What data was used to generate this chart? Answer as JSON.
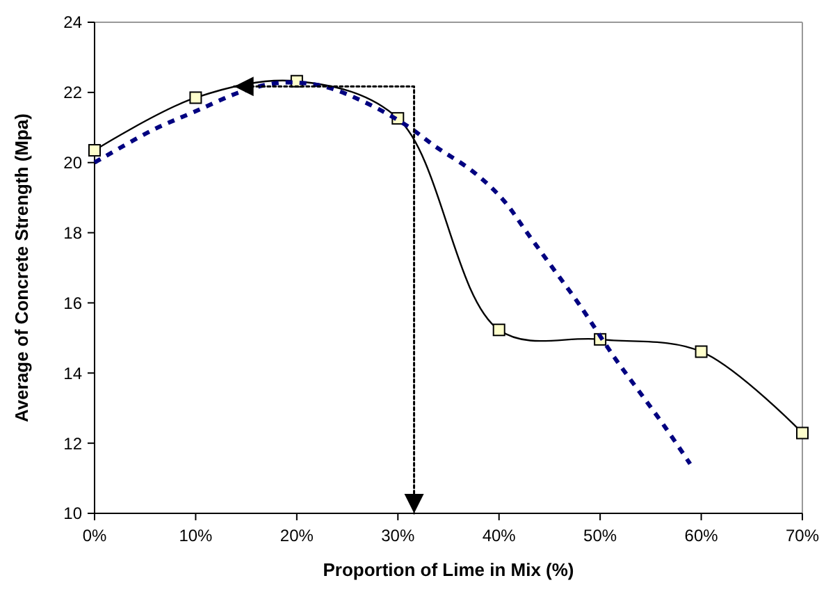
{
  "chart_data": {
    "type": "line",
    "xlabel": "Proportion of Lime in Mix (%)",
    "ylabel": "Average of Concrete Strength (Mpa)",
    "xlim": [
      0,
      70
    ],
    "xticks": [
      {
        "value": 0,
        "label": "0%"
      },
      {
        "value": 10,
        "label": "10%"
      },
      {
        "value": 20,
        "label": "20%"
      },
      {
        "value": 30,
        "label": "30%"
      },
      {
        "value": 40,
        "label": "40%"
      },
      {
        "value": 50,
        "label": "50%"
      },
      {
        "value": 60,
        "label": "60%"
      },
      {
        "value": 70,
        "label": "70%"
      }
    ],
    "ylim": [
      10,
      24
    ],
    "yticks": [
      10,
      12,
      14,
      16,
      18,
      20,
      22,
      24
    ],
    "series": [
      {
        "color": "#000000",
        "marker": "square",
        "line_style": "solid",
        "x": [
          0,
          10,
          20,
          30,
          40,
          50,
          60,
          70
        ],
        "values": [
          20.35,
          21.85,
          22.32,
          21.26,
          15.23,
          14.96,
          14.61,
          12.29
        ]
      },
      {
        "color": "#000080",
        "marker": "none",
        "line_style": "dashed",
        "x": [
          0,
          5.7,
          9.9,
          14.7,
          18.6,
          22.7,
          26.8,
          30.9,
          33.7,
          37.4,
          40.4,
          42.9,
          45.4,
          47.9,
          51.4,
          53.9,
          56.4,
          58.9
        ],
        "values": [
          20.0,
          20.92,
          21.45,
          22.04,
          22.28,
          22.17,
          21.71,
          21.05,
          20.46,
          19.75,
          18.94,
          17.95,
          16.96,
          15.97,
          14.45,
          13.46,
          12.47,
          11.41
        ]
      },
      {
        "color": "#000000",
        "marker": "none",
        "line_style": "dotted",
        "x": [
          13.8,
          31.6,
          31.6
        ],
        "values": [
          22.17,
          22.17,
          10
        ]
      }
    ]
  }
}
